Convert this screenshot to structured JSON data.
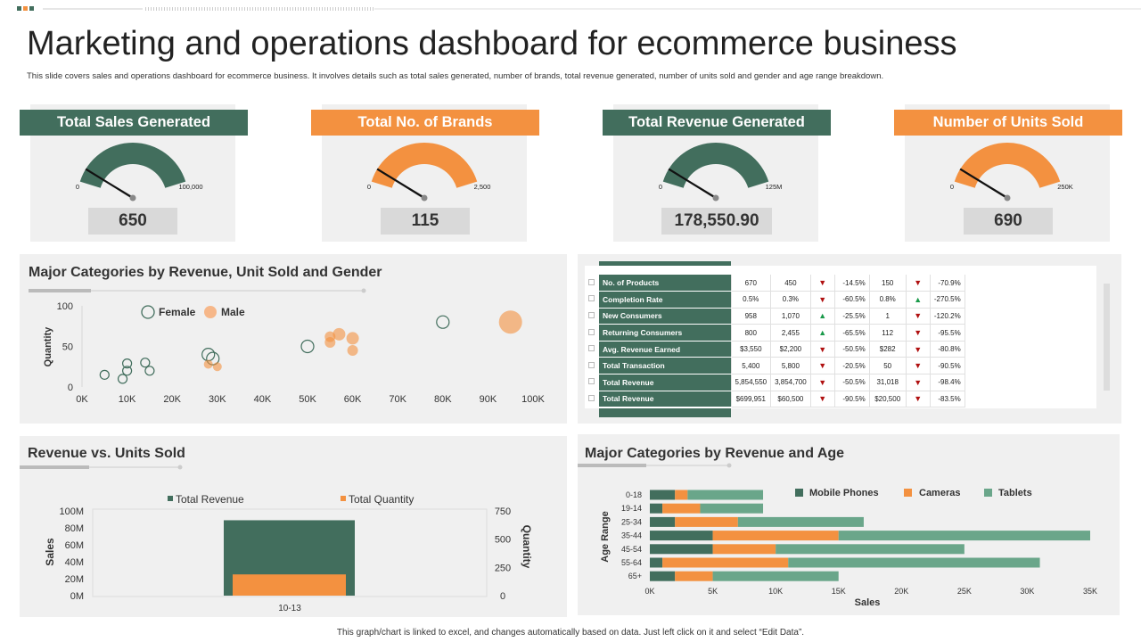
{
  "page": {
    "title": "Marketing and operations dashboard for ecommerce business",
    "subtitle": "This slide covers sales and operations dashboard for ecommerce business. It involves details such as total sales generated, number of brands, total revenue generated, number of units sold and gender and age range breakdown.",
    "footer": "This graph/chart is linked to excel, and changes automatically based on data. Just left click on it and select “Edit Data”."
  },
  "colors": {
    "green": "#426e5d",
    "orange": "#f39140",
    "tablets": "#6aa68a",
    "panel": "#f0f0f0",
    "value_box": "#d9d9d9"
  },
  "kpis": [
    {
      "title": "Total Sales Generated",
      "value": "650",
      "min": "0",
      "max": "100,000",
      "fill": 0.65,
      "color": "green"
    },
    {
      "title": "Total No. of Brands",
      "value": "115",
      "min": "0",
      "max": "2,500",
      "fill": 0.65,
      "color": "orange"
    },
    {
      "title": "Total Revenue Generated",
      "value": "178,550.90",
      "min": "0",
      "max": "125M",
      "fill": 0.75,
      "color": "green"
    },
    {
      "title": "Number of Units Sold",
      "value": "690",
      "min": "0",
      "max": "250K",
      "fill": 0.65,
      "color": "orange"
    }
  ],
  "scatter_panel": {
    "title": "Major Categories by Revenue, Unit Sold and Gender"
  },
  "table": {
    "rows": [
      {
        "label": "No. of Products",
        "a": "670",
        "b": "450",
        "trend1": "down",
        "p1": "-14.5%",
        "c": "150",
        "trend2": "down",
        "p2": "-70.9%"
      },
      {
        "label": "Completion Rate",
        "a": "0.5%",
        "b": "0.3%",
        "trend1": "down",
        "p1": "-60.5%",
        "c": "0.8%",
        "trend2": "up",
        "p2": "-270.5%"
      },
      {
        "label": "New Consumers",
        "a": "958",
        "b": "1,070",
        "trend1": "up",
        "p1": "-25.5%",
        "c": "1",
        "trend2": "down",
        "p2": "-120.2%"
      },
      {
        "label": "Returning Consumers",
        "a": "800",
        "b": "2,455",
        "trend1": "up",
        "p1": "-65.5%",
        "c": "112",
        "trend2": "down",
        "p2": "-95.5%"
      },
      {
        "label": "Avg.  Revenue Earned",
        "a": "$3,550",
        "b": "$2,200",
        "trend1": "down",
        "p1": "-50.5%",
        "c": "$282",
        "trend2": "down",
        "p2": "-80.8%"
      },
      {
        "label": "Total Transaction",
        "a": "5,400",
        "b": "5,800",
        "trend1": "down",
        "p1": "-20.5%",
        "c": "50",
        "trend2": "down",
        "p2": "-90.5%"
      },
      {
        "label": "Total Revenue",
        "a": "5,854,550",
        "b": "3,854,700",
        "trend1": "down",
        "p1": "-50.5%",
        "c": "31,018",
        "trend2": "down",
        "p2": "-98.4%"
      },
      {
        "label": "Total Revenue",
        "a": "$699,951",
        "b": "$60,500",
        "trend1": "down",
        "p1": "-90.5%",
        "c": "$20,500",
        "trend2": "down",
        "p2": "-83.5%"
      }
    ]
  },
  "revenue_panel": {
    "title": "Revenue vs. Units Sold"
  },
  "age_panel": {
    "title": "Major Categories by Revenue and Age"
  },
  "chart_data": [
    {
      "type": "scatter",
      "title": "Major Categories by Revenue, Unit Sold and Gender",
      "xlabel": "",
      "ylabel": "Quantity",
      "xlim": [
        0,
        100000
      ],
      "ylim": [
        0,
        100
      ],
      "xticks": [
        "0K",
        "10K",
        "20K",
        "30K",
        "40K",
        "50K",
        "60K",
        "70K",
        "80K",
        "90K",
        "100K"
      ],
      "yticks": [
        "0",
        "50",
        "100"
      ],
      "legend_position": "top-left",
      "series": [
        {
          "name": "Female",
          "color": "#426e5d",
          "hollow": true,
          "points": [
            {
              "x": 5000,
              "y": 15,
              "size": 5
            },
            {
              "x": 9000,
              "y": 10,
              "size": 5
            },
            {
              "x": 10000,
              "y": 20,
              "size": 5
            },
            {
              "x": 10000,
              "y": 29,
              "size": 5
            },
            {
              "x": 14000,
              "y": 30,
              "size": 5
            },
            {
              "x": 15000,
              "y": 20,
              "size": 5
            },
            {
              "x": 28000,
              "y": 40,
              "size": 7
            },
            {
              "x": 29000,
              "y": 35,
              "size": 7
            },
            {
              "x": 50000,
              "y": 50,
              "size": 7
            },
            {
              "x": 80000,
              "y": 80,
              "size": 7
            }
          ]
        },
        {
          "name": "Male",
          "color": "#f39140",
          "hollow": false,
          "points": [
            {
              "x": 28000,
              "y": 28,
              "size": 5
            },
            {
              "x": 30000,
              "y": 25,
              "size": 5
            },
            {
              "x": 55000,
              "y": 55,
              "size": 6
            },
            {
              "x": 55000,
              "y": 62,
              "size": 6
            },
            {
              "x": 57000,
              "y": 65,
              "size": 7
            },
            {
              "x": 60000,
              "y": 60,
              "size": 7
            },
            {
              "x": 60000,
              "y": 45,
              "size": 6
            },
            {
              "x": 95000,
              "y": 80,
              "size": 13
            }
          ]
        }
      ]
    },
    {
      "type": "bar",
      "title": "Revenue vs. Units Sold",
      "categories": [
        "10-13"
      ],
      "ylabel": "Sales",
      "y2label": "Quantity",
      "ylim": [
        0,
        100000000
      ],
      "y2lim": [
        0,
        750
      ],
      "yticks": [
        "0M",
        "20M",
        "40M",
        "60M",
        "80M",
        "100M"
      ],
      "y2ticks": [
        "0",
        "250",
        "500",
        "750"
      ],
      "legend_position": "top",
      "series": [
        {
          "name": "Total Revenue",
          "axis": "left",
          "color": "#426e5d",
          "values": [
            89000000
          ]
        },
        {
          "name": "Total Quantity",
          "axis": "right",
          "color": "#f39140",
          "values": [
            188
          ]
        }
      ]
    },
    {
      "type": "bar",
      "orientation": "horizontal",
      "stacked": true,
      "title": "Major Categories by Revenue and Age",
      "categories": [
        "0-18",
        "19-14",
        "25-34",
        "35-44",
        "45-54",
        "55-64",
        "65+"
      ],
      "xlabel": "Sales",
      "ylabel": "Age Range",
      "xlim": [
        0,
        35000
      ],
      "xticks": [
        "0K",
        "5K",
        "10K",
        "15K",
        "20K",
        "25K",
        "30K",
        "35K"
      ],
      "legend_position": "top-right",
      "series": [
        {
          "name": "Mobile Phones",
          "color": "#426e5d",
          "values": [
            2000,
            1000,
            2000,
            5000,
            5000,
            1000,
            2000
          ]
        },
        {
          "name": "Cameras",
          "color": "#f39140",
          "values": [
            1000,
            3000,
            5000,
            10000,
            5000,
            10000,
            3000
          ]
        },
        {
          "name": "Tablets",
          "color": "#6aa68a",
          "values": [
            6000,
            5000,
            10000,
            20000,
            15000,
            20000,
            10000
          ]
        }
      ]
    }
  ]
}
